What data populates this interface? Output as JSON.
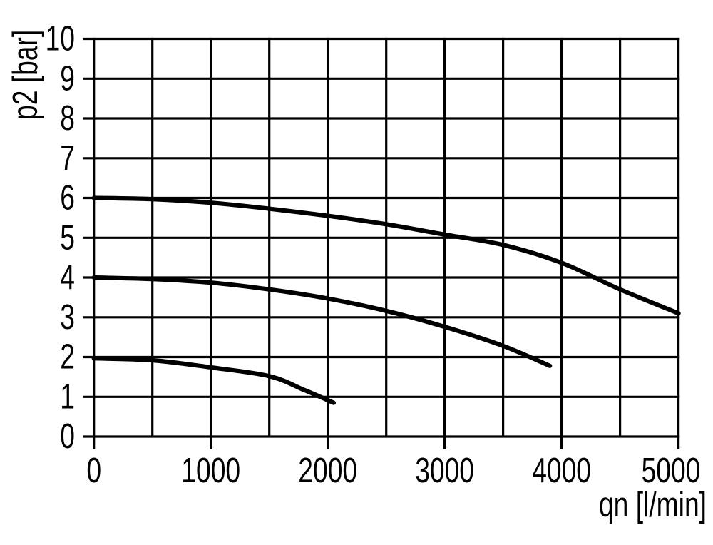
{
  "page": {
    "background": "#ffffff",
    "ink_color": "#000000"
  },
  "chart_data": {
    "type": "line",
    "title": "",
    "xlabel": "qn [l/min]",
    "ylabel": "p2 [bar]",
    "xlim": [
      0,
      5000
    ],
    "ylim": [
      0,
      10
    ],
    "x_gridline_step": 500,
    "y_gridline_step": 1,
    "x_tick_labels": [
      "0",
      "1000",
      "2000",
      "3000",
      "4000",
      "5000"
    ],
    "x_tick_values": [
      0,
      1000,
      2000,
      3000,
      4000,
      5000
    ],
    "y_tick_labels": [
      "0",
      "1",
      "2",
      "3",
      "4",
      "5",
      "6",
      "7",
      "8",
      "9",
      "10"
    ],
    "y_tick_values": [
      0,
      1,
      2,
      3,
      4,
      5,
      6,
      7,
      8,
      9,
      10
    ],
    "grid": "on",
    "legend": "none",
    "line_color": "#000000",
    "series": [
      {
        "name": "upper-curve-start-6-bar",
        "x": [
          0,
          500,
          1000,
          1500,
          2000,
          2500,
          3000,
          3500,
          4000,
          4500,
          5000
        ],
        "y": [
          6.0,
          5.97,
          5.88,
          5.73,
          5.55,
          5.34,
          5.08,
          4.82,
          4.37,
          3.7,
          3.1
        ]
      },
      {
        "name": "middle-curve-start-4-bar",
        "x": [
          0,
          500,
          1000,
          1500,
          2000,
          2500,
          3000,
          3500,
          3900
        ],
        "y": [
          4.0,
          3.96,
          3.87,
          3.7,
          3.47,
          3.16,
          2.76,
          2.28,
          1.78
        ]
      },
      {
        "name": "lower-curve-start-2-bar",
        "x": [
          0,
          500,
          1000,
          1500,
          1800,
          2050
        ],
        "y": [
          1.97,
          1.92,
          1.74,
          1.52,
          1.17,
          0.85
        ]
      }
    ]
  }
}
